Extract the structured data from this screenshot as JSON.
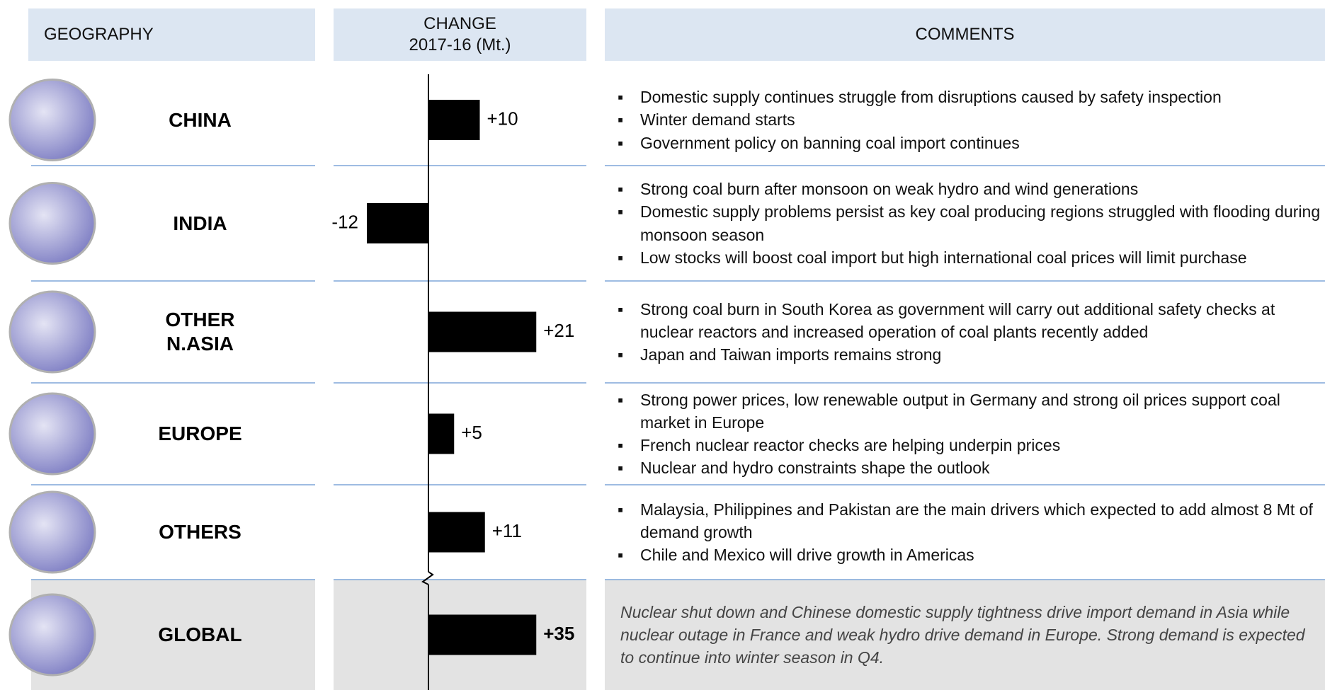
{
  "header": {
    "geography": "GEOGRAPHY",
    "change_title": "CHANGE",
    "change_unit": "2017-16 (Mt.)",
    "comments": "COMMENTS"
  },
  "rows": [
    {
      "geography": "CHINA",
      "value": 10,
      "value_label": "+10",
      "comments": [
        "Domestic supply continues struggle from disruptions caused by safety inspection",
        "Winter demand starts",
        "Government policy on banning coal import continues"
      ]
    },
    {
      "geography": "INDIA",
      "value": -12,
      "value_label": "-12",
      "comments": [
        "Strong coal burn after monsoon on weak hydro and wind generations",
        "Domestic supply problems persist as key coal producing regions struggled with flooding during monsoon season",
        "Low stocks will boost coal import but high international coal prices will limit purchase"
      ]
    },
    {
      "geography": "OTHER\nN.ASIA",
      "value": 21,
      "value_label": "+21",
      "comments": [
        "Strong coal burn in South Korea as government will carry out additional safety checks at nuclear reactors and increased operation of coal plants recently added",
        "Japan and Taiwan imports remains strong"
      ]
    },
    {
      "geography": "EUROPE",
      "value": 5,
      "value_label": "+5",
      "comments": [
        "Strong power prices, low renewable output in Germany and strong oil prices support coal market in Europe",
        "French nuclear reactor checks are helping underpin prices",
        "Nuclear and hydro constraints shape the outlook"
      ]
    },
    {
      "geography": "OTHERS",
      "value": 11,
      "value_label": "+11",
      "comments": [
        "Malaysia, Philippines and Pakistan are the main drivers which expected to add almost 8 Mt of demand growth",
        "Chile and Mexico will drive growth in Americas"
      ]
    }
  ],
  "global": {
    "geography": "GLOBAL",
    "value": 35,
    "value_label": "+35",
    "comment": "Nuclear shut down and Chinese domestic supply tightness drive import demand in Asia while nuclear outage in France and weak hydro drive demand in Europe. Strong demand is expected to continue into winter season in Q4."
  }
}
